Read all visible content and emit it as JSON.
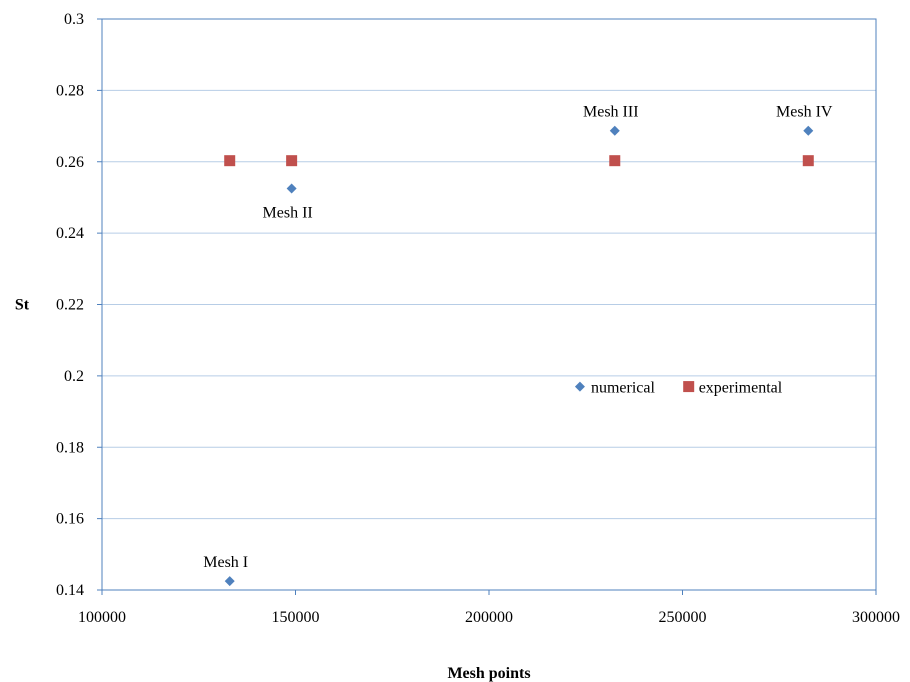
{
  "chart_data": {
    "type": "scatter",
    "xlabel": "Mesh points",
    "ylabel": "St",
    "xlim": [
      100000,
      300000
    ],
    "ylim": [
      0.14,
      0.3
    ],
    "x_ticks": [
      "100000",
      "150000",
      "200000",
      "250000",
      "300000"
    ],
    "y_ticks": [
      "0.14",
      "0.16",
      "0.18",
      "0.2",
      "0.22",
      "0.24",
      "0.26",
      "0.28",
      "0.3"
    ],
    "grid": "horizontal",
    "legend_position": "inside-lower-right",
    "series": [
      {
        "name": "numerical",
        "marker": "diamond",
        "color": "#4f81bd",
        "points": [
          {
            "x": 133000,
            "y": 0.1425
          },
          {
            "x": 149000,
            "y": 0.2525
          },
          {
            "x": 232500,
            "y": 0.2687
          },
          {
            "x": 282500,
            "y": 0.2687
          }
        ]
      },
      {
        "name": "experimental",
        "marker": "square",
        "color": "#c0504d",
        "points": [
          {
            "x": 133000,
            "y": 0.2603
          },
          {
            "x": 149000,
            "y": 0.2603
          },
          {
            "x": 232500,
            "y": 0.2603
          },
          {
            "x": 282500,
            "y": 0.2603
          }
        ]
      }
    ],
    "annotations": [
      {
        "text": "Mesh I",
        "x": 133000,
        "y": 0.1425,
        "position": "above"
      },
      {
        "text": "Mesh II",
        "x": 149000,
        "y": 0.2525,
        "position": "below"
      },
      {
        "text": "Mesh III",
        "x": 232500,
        "y": 0.2687,
        "position": "above"
      },
      {
        "text": "Mesh IV",
        "x": 282500,
        "y": 0.2687,
        "position": "above"
      }
    ],
    "colors": {
      "plot_border": "#4f81bd",
      "gridline": "#b7cde6"
    }
  }
}
